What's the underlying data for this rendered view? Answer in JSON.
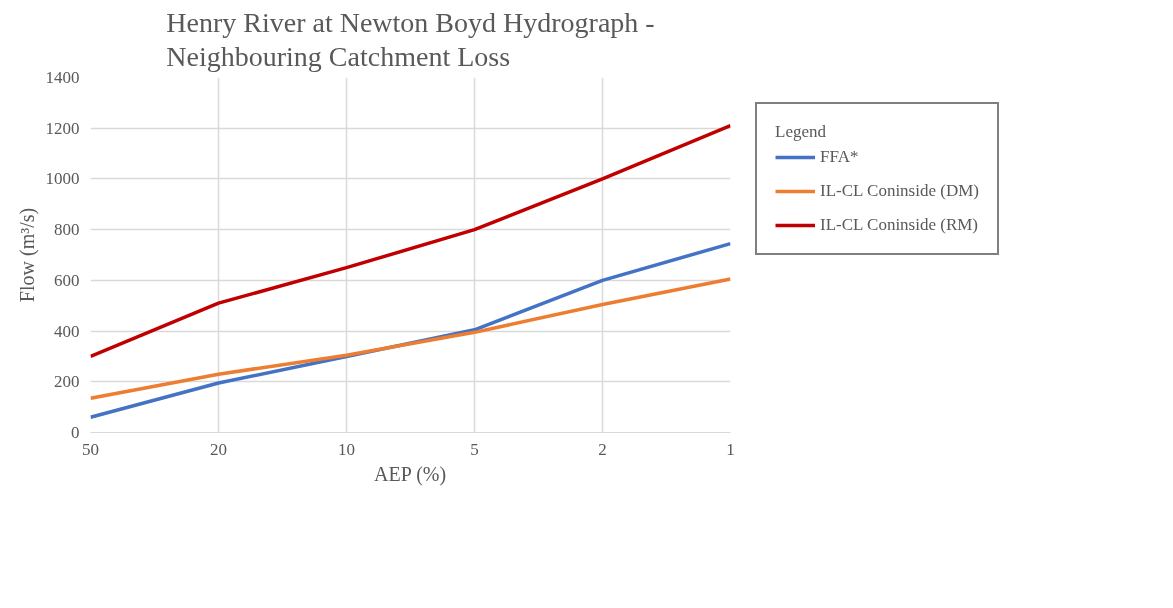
{
  "chart_data": {
    "type": "line",
    "title": "Henry River at Newton Boyd Hydrograph - Neighbouring Catchment Loss",
    "xlabel": "AEP (%)",
    "ylabel": "Flow (m³/s)",
    "legend_title": "Legend",
    "categories": [
      "50",
      "20",
      "10",
      "5",
      "2",
      "1"
    ],
    "series": [
      {
        "name": "FFA*",
        "color": "#4472c4",
        "values": [
          60,
          195,
          300,
          405,
          600,
          745
        ]
      },
      {
        "name": "IL-CL Coninside (DM)",
        "color": "#ed7d31",
        "values": [
          135,
          230,
          305,
          395,
          505,
          605
        ]
      },
      {
        "name": "IL-CL Coninside (RM)",
        "color": "#c00000",
        "values": [
          300,
          510,
          650,
          800,
          1000,
          1210
        ]
      }
    ],
    "ylim": [
      0,
      1400
    ],
    "yticks": [
      0,
      200,
      400,
      600,
      800,
      1000,
      1200,
      1400
    ],
    "grid": true,
    "legend": "right",
    "marker": "none",
    "line_style": "solid"
  }
}
